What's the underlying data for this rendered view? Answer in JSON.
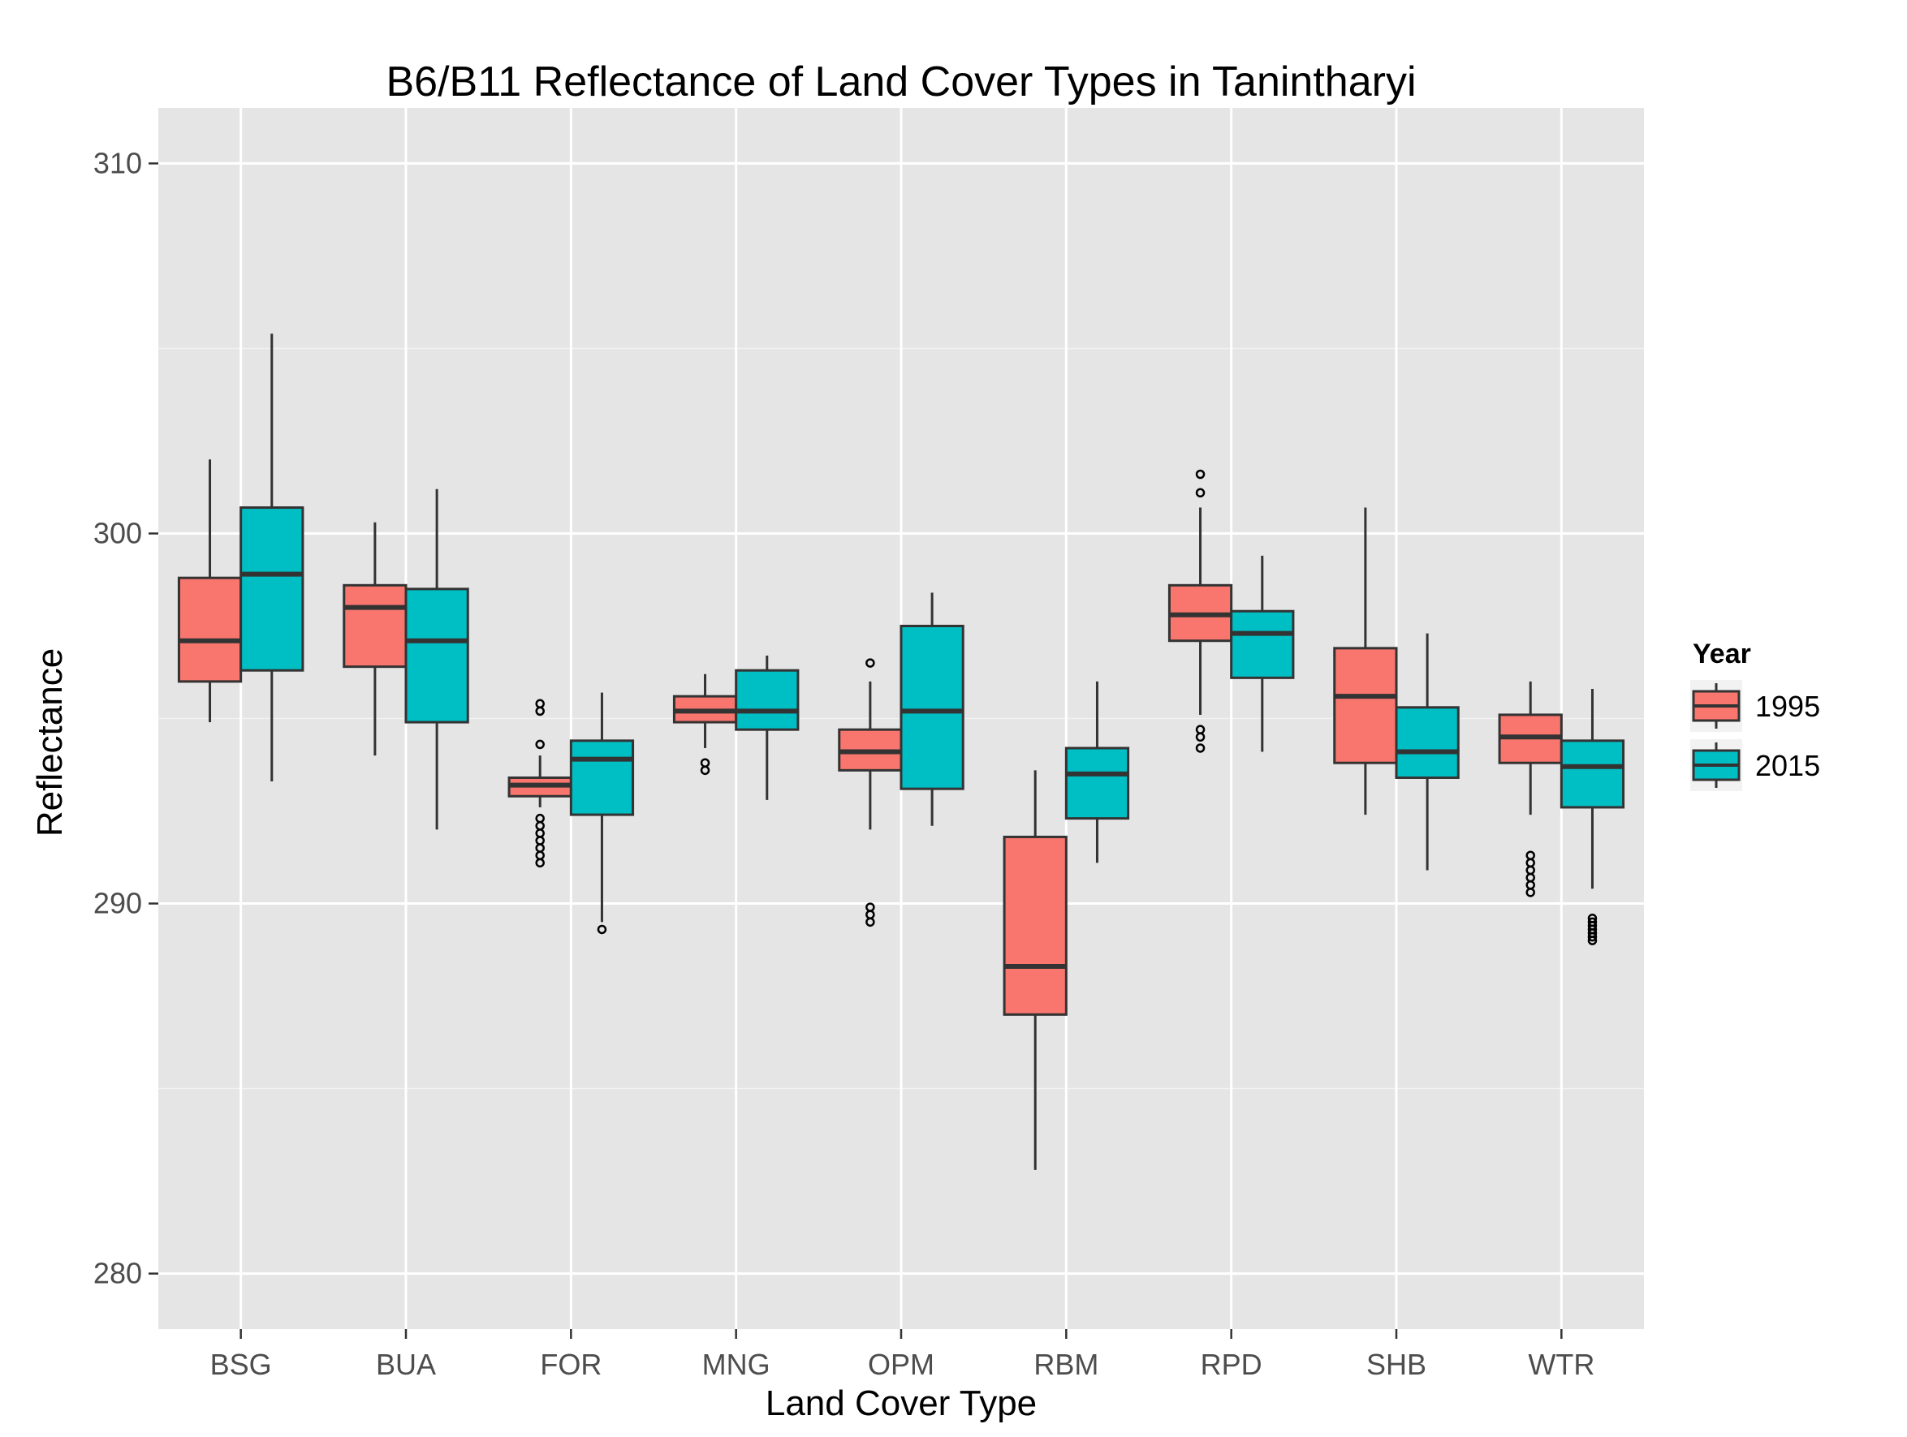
{
  "chart_data": {
    "type": "boxplot",
    "title": "B6/B11 Reflectance of Land Cover Types in Tanintharyi",
    "xlabel": "Land Cover Type",
    "ylabel": "Reflectance",
    "ylim": [
      278.5,
      311.5
    ],
    "yticks": [
      280,
      290,
      300,
      310
    ],
    "grid": true,
    "legend": {
      "title": "Year",
      "position": "right"
    },
    "categories": [
      "BSG",
      "BUA",
      "FOR",
      "MNG",
      "OPM",
      "RBM",
      "RPD",
      "SHB",
      "WTR"
    ],
    "series": [
      {
        "name": "1995",
        "color": "#F8766D",
        "boxes": [
          {
            "min": 294.9,
            "q1": 296.0,
            "median": 297.1,
            "q3": 298.8,
            "max": 302.0,
            "outliers": []
          },
          {
            "min": 294.0,
            "q1": 296.4,
            "median": 298.0,
            "q3": 298.6,
            "max": 300.3,
            "outliers": []
          },
          {
            "min": 292.6,
            "q1": 292.9,
            "median": 293.2,
            "q3": 293.4,
            "max": 294.0,
            "outliers": [
              295.4,
              295.2,
              294.3,
              292.3,
              292.1,
              291.9,
              291.7,
              291.5,
              291.3,
              291.1
            ]
          },
          {
            "min": 294.2,
            "q1": 294.9,
            "median": 295.2,
            "q3": 295.6,
            "max": 296.2,
            "outliers": [
              293.8,
              293.6
            ]
          },
          {
            "min": 292.0,
            "q1": 293.6,
            "median": 294.1,
            "q3": 294.7,
            "max": 296.0,
            "outliers": [
              296.5,
              289.9,
              289.7,
              289.5
            ]
          },
          {
            "min": 282.8,
            "q1": 287.0,
            "median": 288.3,
            "q3": 291.8,
            "max": 293.6,
            "outliers": []
          },
          {
            "min": 295.1,
            "q1": 297.1,
            "median": 297.8,
            "q3": 298.6,
            "max": 300.7,
            "outliers": [
              301.6,
              301.1,
              294.7,
              294.5,
              294.2
            ]
          },
          {
            "min": 292.4,
            "q1": 293.8,
            "median": 295.6,
            "q3": 296.9,
            "max": 300.7,
            "outliers": []
          },
          {
            "min": 292.4,
            "q1": 293.8,
            "median": 294.5,
            "q3": 295.1,
            "max": 296.0,
            "outliers": [
              291.3,
              291.1,
              290.9,
              290.7,
              290.5,
              290.3
            ]
          }
        ]
      },
      {
        "name": "2015",
        "color": "#00BFC4",
        "boxes": [
          {
            "min": 293.3,
            "q1": 296.3,
            "median": 298.9,
            "q3": 300.7,
            "max": 305.4,
            "outliers": []
          },
          {
            "min": 292.0,
            "q1": 294.9,
            "median": 297.1,
            "q3": 298.5,
            "max": 301.2,
            "outliers": []
          },
          {
            "min": 289.5,
            "q1": 292.4,
            "median": 293.9,
            "q3": 294.4,
            "max": 295.7,
            "outliers": [
              289.3
            ]
          },
          {
            "min": 292.8,
            "q1": 294.7,
            "median": 295.2,
            "q3": 296.3,
            "max": 296.7,
            "outliers": []
          },
          {
            "min": 292.1,
            "q1": 293.1,
            "median": 295.2,
            "q3": 297.5,
            "max": 298.4,
            "outliers": []
          },
          {
            "min": 291.1,
            "q1": 292.3,
            "median": 293.5,
            "q3": 294.2,
            "max": 296.0,
            "outliers": []
          },
          {
            "min": 294.1,
            "q1": 296.1,
            "median": 297.3,
            "q3": 297.9,
            "max": 299.4,
            "outliers": []
          },
          {
            "min": 290.9,
            "q1": 293.4,
            "median": 294.1,
            "q3": 295.3,
            "max": 297.3,
            "outliers": []
          },
          {
            "min": 290.4,
            "q1": 292.6,
            "median": 293.7,
            "q3": 294.4,
            "max": 295.8,
            "outliers": [
              289.6,
              289.5,
              289.4,
              289.3,
              289.2,
              289.1,
              289.0
            ]
          }
        ]
      }
    ]
  }
}
